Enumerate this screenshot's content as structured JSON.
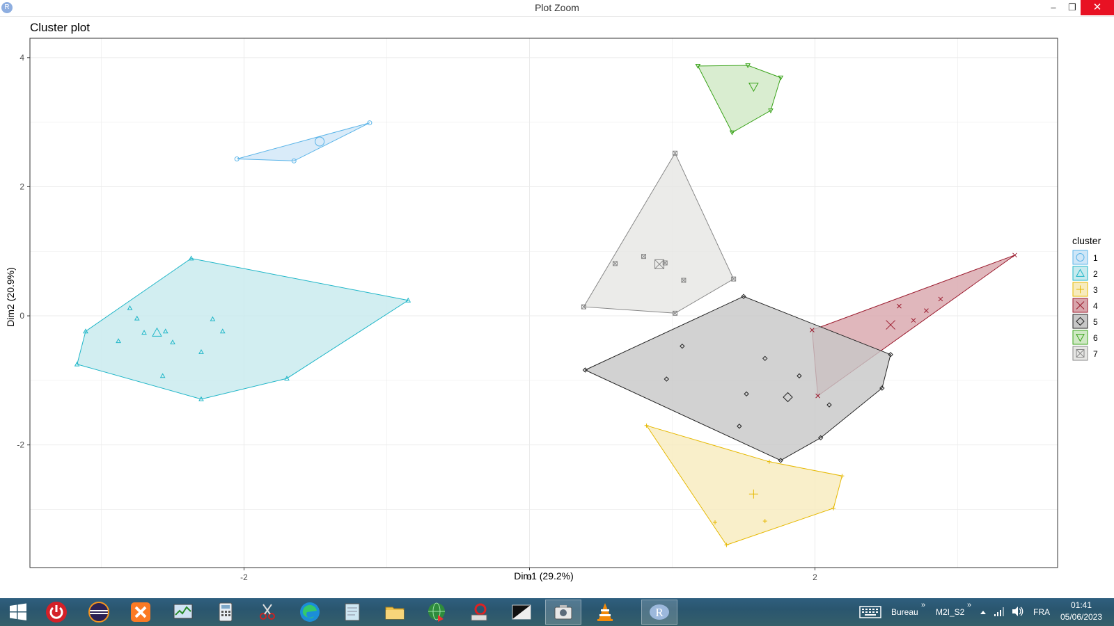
{
  "window": {
    "title": "Plot Zoom",
    "app_icon_letter": "R",
    "minimize_glyph": "–",
    "maximize_glyph": "❐",
    "close_glyph": "✕"
  },
  "chart_data": {
    "type": "scatter",
    "title": "Cluster plot",
    "xlabel": "Dim1 (29.2%)",
    "ylabel": "Dim2 (20.9%)",
    "xlim": [
      -3.5,
      3.7
    ],
    "ylim": [
      -3.9,
      4.3
    ],
    "xticks": [
      -2,
      0,
      2
    ],
    "yticks": [
      -2,
      0,
      2,
      4
    ],
    "grid": true,
    "legend": {
      "title": "cluster",
      "placement": "right"
    },
    "series": [
      {
        "name": "1",
        "color": "#5ab4e8",
        "fill": "#cfe6f7",
        "shape": "circle",
        "points": [
          [
            -2.05,
            2.43
          ],
          [
            -1.65,
            2.4
          ],
          [
            -1.12,
            2.99
          ]
        ],
        "hull": [
          [
            -2.05,
            2.43
          ],
          [
            -1.65,
            2.4
          ],
          [
            -1.12,
            2.99
          ]
        ],
        "center": [
          -1.47,
          2.7
        ]
      },
      {
        "name": "2",
        "color": "#1fb6c8",
        "fill": "#c7eaee",
        "shape": "triangle",
        "points": [
          [
            -3.11,
            -0.24
          ],
          [
            -3.17,
            -0.75
          ],
          [
            -2.37,
            0.89
          ],
          [
            -0.85,
            0.24
          ],
          [
            -1.7,
            -0.97
          ],
          [
            -2.3,
            -1.29
          ],
          [
            -2.8,
            0.12
          ],
          [
            -2.75,
            -0.04
          ],
          [
            -2.7,
            -0.26
          ],
          [
            -2.55,
            -0.24
          ],
          [
            -2.5,
            -0.41
          ],
          [
            -2.88,
            -0.39
          ],
          [
            -2.57,
            -0.93
          ],
          [
            -2.3,
            -0.56
          ],
          [
            -2.22,
            -0.05
          ],
          [
            -2.15,
            -0.24
          ]
        ],
        "hull": [
          [
            -3.11,
            -0.24
          ],
          [
            -2.37,
            0.89
          ],
          [
            -0.85,
            0.24
          ],
          [
            -1.7,
            -0.97
          ],
          [
            -2.3,
            -1.29
          ],
          [
            -3.17,
            -0.75
          ]
        ],
        "center": [
          -2.61,
          -0.26
        ]
      },
      {
        "name": "3",
        "color": "#e6b800",
        "fill": "#f7ebbd",
        "shape": "plus",
        "points": [
          [
            0.82,
            -1.7
          ],
          [
            1.68,
            -2.26
          ],
          [
            2.19,
            -2.48
          ],
          [
            2.13,
            -2.98
          ],
          [
            1.38,
            -3.55
          ],
          [
            1.3,
            -3.2
          ],
          [
            1.65,
            -3.18
          ]
        ],
        "hull": [
          [
            0.82,
            -1.7
          ],
          [
            1.68,
            -2.26
          ],
          [
            2.19,
            -2.48
          ],
          [
            2.13,
            -2.98
          ],
          [
            1.38,
            -3.55
          ]
        ],
        "center": [
          1.57,
          -2.76
        ]
      },
      {
        "name": "4",
        "color": "#9b1b2e",
        "fill": "#d8a5ab",
        "shape": "x",
        "points": [
          [
            3.4,
            0.94
          ],
          [
            2.02,
            -1.24
          ],
          [
            1.98,
            -0.22
          ],
          [
            2.59,
            0.15
          ],
          [
            2.78,
            0.08
          ],
          [
            2.69,
            -0.07
          ],
          [
            2.88,
            0.26
          ]
        ],
        "hull": [
          [
            3.4,
            0.94
          ],
          [
            2.02,
            -1.24
          ],
          [
            1.98,
            -0.22
          ]
        ],
        "center": [
          2.53,
          -0.14
        ]
      },
      {
        "name": "5",
        "color": "#222222",
        "fill": "#c7c7c7",
        "shape": "diamond",
        "points": [
          [
            0.39,
            -0.84
          ],
          [
            1.5,
            0.3
          ],
          [
            2.53,
            -0.6
          ],
          [
            2.47,
            -1.12
          ],
          [
            2.04,
            -1.89
          ],
          [
            1.76,
            -2.24
          ],
          [
            1.07,
            -0.47
          ],
          [
            1.65,
            -0.66
          ],
          [
            0.96,
            -0.98
          ],
          [
            1.52,
            -1.21
          ],
          [
            1.89,
            -0.93
          ],
          [
            2.1,
            -1.38
          ],
          [
            1.47,
            -1.71
          ]
        ],
        "hull": [
          [
            0.39,
            -0.84
          ],
          [
            1.5,
            0.3
          ],
          [
            2.53,
            -0.6
          ],
          [
            2.47,
            -1.12
          ],
          [
            2.04,
            -1.89
          ],
          [
            1.76,
            -2.24
          ]
        ],
        "center": [
          1.81,
          -1.26
        ]
      },
      {
        "name": "6",
        "color": "#3aa31a",
        "fill": "#cfe8c4",
        "shape": "triangle-down",
        "points": [
          [
            1.18,
            3.87
          ],
          [
            1.53,
            3.88
          ],
          [
            1.76,
            3.69
          ],
          [
            1.69,
            3.18
          ],
          [
            1.42,
            2.84
          ]
        ],
        "hull": [
          [
            1.18,
            3.87
          ],
          [
            1.53,
            3.88
          ],
          [
            1.76,
            3.69
          ],
          [
            1.69,
            3.18
          ],
          [
            1.42,
            2.84
          ]
        ],
        "center": [
          1.57,
          3.55
        ]
      },
      {
        "name": "7",
        "color": "#888888",
        "fill": "#e6e6e4",
        "shape": "square-cross",
        "points": [
          [
            1.02,
            2.52
          ],
          [
            1.43,
            0.57
          ],
          [
            1.02,
            0.04
          ],
          [
            0.38,
            0.14
          ],
          [
            0.6,
            0.81
          ],
          [
            0.8,
            0.92
          ],
          [
            0.95,
            0.82
          ],
          [
            1.08,
            0.55
          ]
        ],
        "hull": [
          [
            1.02,
            2.52
          ],
          [
            1.43,
            0.57
          ],
          [
            1.02,
            0.04
          ],
          [
            0.38,
            0.14
          ]
        ],
        "center": [
          0.91,
          0.8
        ]
      }
    ]
  },
  "taskbar": {
    "desktop_label": "Bureau",
    "folder_label": "M2I_S2",
    "language": "FRA",
    "time": "01:41",
    "date": "05/06/2023",
    "chevron": "»",
    "apps": [
      "start",
      "power",
      "eclipse",
      "xampp",
      "task-manager",
      "calculator",
      "snipping-tool",
      "edge",
      "notepad",
      "file-explorer",
      "download-manager",
      "installer",
      "terminal",
      "camera",
      "vlc",
      "r"
    ]
  }
}
